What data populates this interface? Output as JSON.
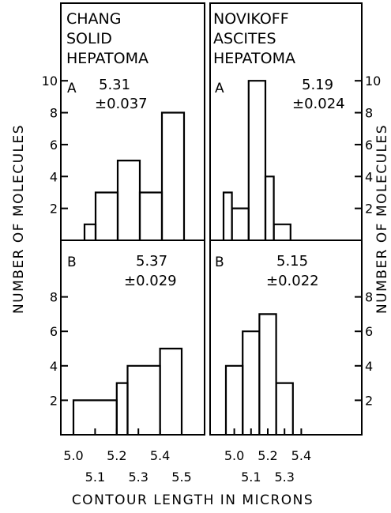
{
  "figure": {
    "ylabel_left": "NUMBER OF MOLECULES",
    "ylabel_right": "NUMBER OF MOLECULES",
    "xlabel": "CONTOUR LENGTH IN MICRONS"
  },
  "columns": [
    {
      "title_lines": [
        "CHANG",
        "SOLID",
        "HEPATOMA"
      ]
    },
    {
      "title_lines": [
        "NOVIKOFF",
        "ASCITES",
        "HEPATOMA"
      ]
    }
  ],
  "chart_data": [
    {
      "type": "bar",
      "id": "chang-a",
      "panel": "A",
      "mean": "5.31",
      "sd": "±0.037",
      "x_edges": [
        5.0,
        5.05,
        5.1,
        5.15,
        5.2,
        5.25,
        5.3,
        5.35,
        5.4,
        5.45,
        5.5
      ],
      "bins": [
        {
          "x0": 5.05,
          "x1": 5.1,
          "value": 1
        },
        {
          "x0": 5.1,
          "x1": 5.2,
          "value": 3
        },
        {
          "x0": 5.2,
          "x1": 5.3,
          "value": 5
        },
        {
          "x0": 5.3,
          "x1": 5.4,
          "value": 3
        },
        {
          "x0": 5.4,
          "x1": 5.5,
          "value": 8
        }
      ],
      "ylim": [
        0,
        11
      ],
      "yticks": [
        2,
        4,
        6,
        8,
        10
      ],
      "ytick_labels": [
        "2",
        "4",
        "6",
        "8",
        "10"
      ]
    },
    {
      "type": "bar",
      "id": "chang-b",
      "panel": "B",
      "mean": "5.37",
      "sd": "±0.029",
      "bins": [
        {
          "x0": 5.0,
          "x1": 5.2,
          "value": 2
        },
        {
          "x0": 5.2,
          "x1": 5.25,
          "value": 3
        },
        {
          "x0": 5.25,
          "x1": 5.4,
          "value": 4
        },
        {
          "x0": 5.4,
          "x1": 5.5,
          "value": 5
        }
      ],
      "ylim": [
        0,
        10
      ],
      "yticks": [
        2,
        4,
        6,
        8
      ],
      "ytick_labels": [
        "2",
        "4",
        "6",
        "8"
      ],
      "xticks": [
        5.0,
        5.1,
        5.2,
        5.3,
        5.4,
        5.5
      ],
      "xtick_labels": [
        "5.0",
        "5.1",
        "5.2",
        "5.3",
        "5.4",
        "5.5"
      ]
    },
    {
      "type": "bar",
      "id": "novikoff-a",
      "panel": "A",
      "mean": "5.19",
      "sd": "±0.024",
      "bins": [
        {
          "x0": 4.95,
          "x1": 5.0,
          "value": 3
        },
        {
          "x0": 5.0,
          "x1": 5.1,
          "value": 2
        },
        {
          "x0": 5.1,
          "x1": 5.2,
          "value": 10
        },
        {
          "x0": 5.2,
          "x1": 5.25,
          "value": 4
        },
        {
          "x0": 5.25,
          "x1": 5.35,
          "value": 1
        }
      ],
      "ylim": [
        0,
        11
      ],
      "yticks": [
        2,
        4,
        6,
        8,
        10
      ],
      "ytick_labels": [
        "2",
        "4",
        "6",
        "8",
        "10"
      ]
    },
    {
      "type": "bar",
      "id": "novikoff-b",
      "panel": "B",
      "mean": "5.15",
      "sd": "±0.022",
      "bins": [
        {
          "x0": 4.95,
          "x1": 5.05,
          "value": 4
        },
        {
          "x0": 5.05,
          "x1": 5.15,
          "value": 6
        },
        {
          "x0": 5.15,
          "x1": 5.25,
          "value": 7
        },
        {
          "x0": 5.25,
          "x1": 5.35,
          "value": 3
        }
      ],
      "ylim": [
        0,
        10
      ],
      "yticks": [
        2,
        4,
        6,
        8
      ],
      "ytick_labels": [
        "2",
        "4",
        "6",
        "8"
      ],
      "xticks": [
        5.0,
        5.1,
        5.2,
        5.3,
        5.4
      ],
      "xtick_labels": [
        "5.0",
        "5.1",
        "5.2",
        "5.3",
        "5.4"
      ]
    }
  ]
}
